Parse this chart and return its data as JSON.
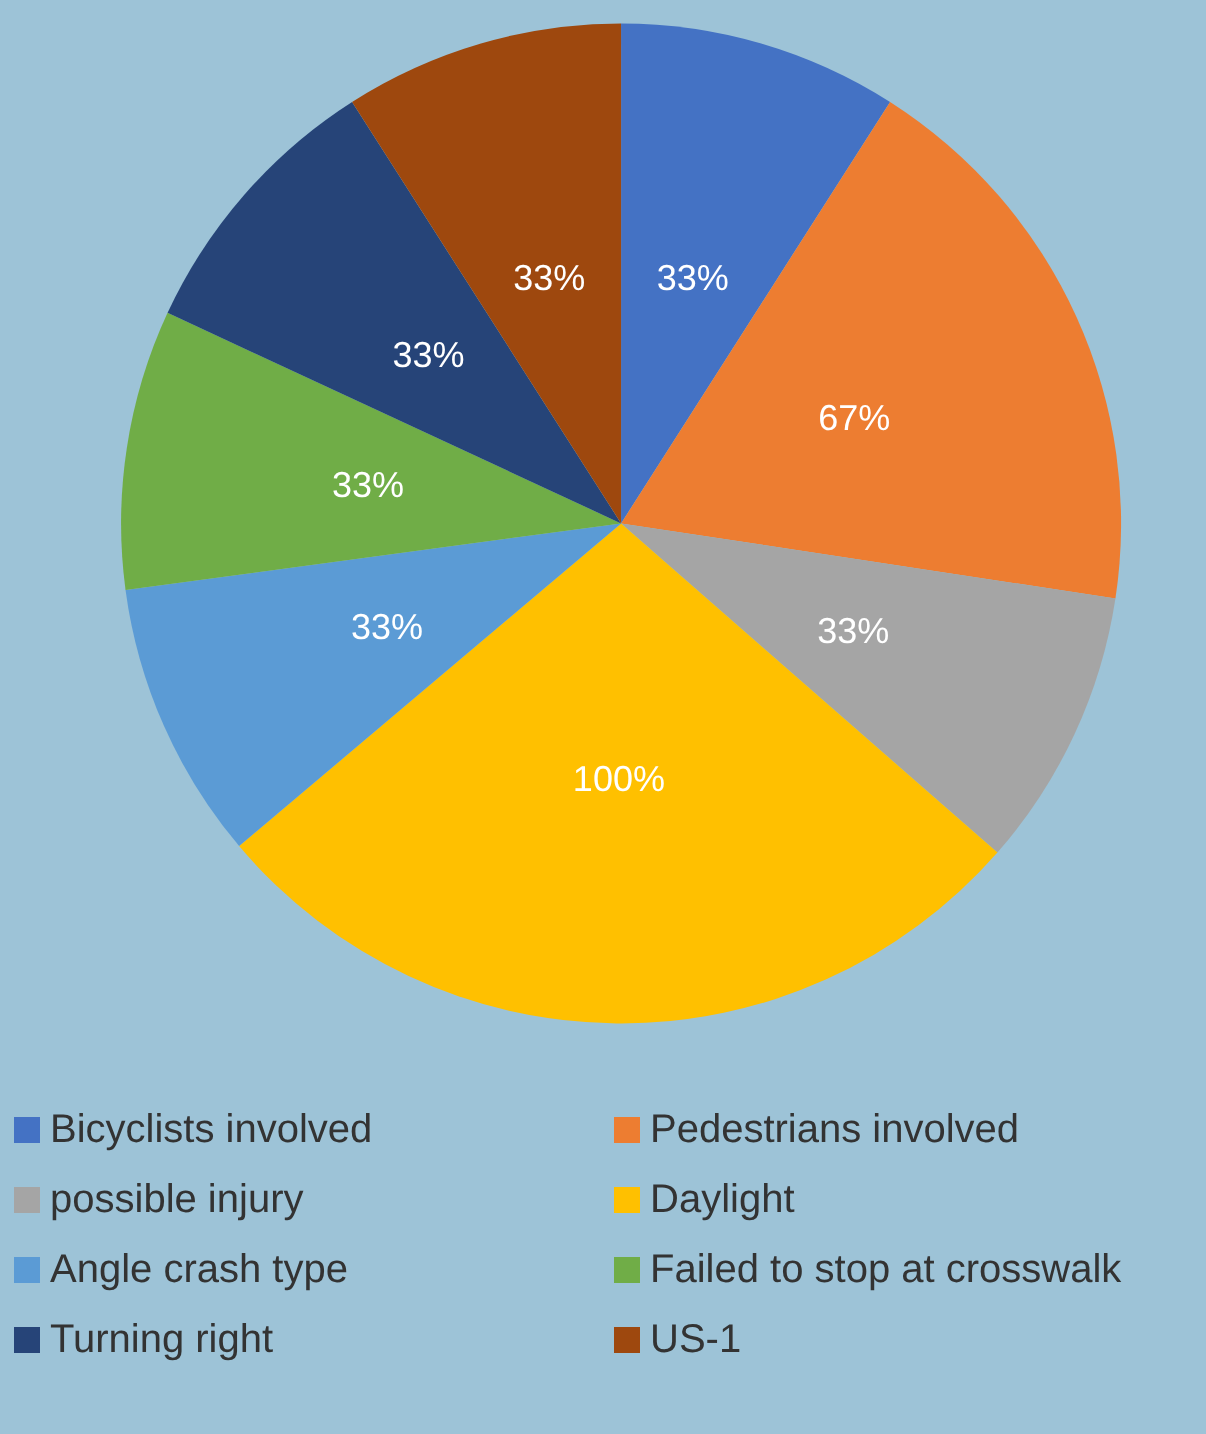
{
  "chart_data": {
    "type": "pie",
    "categories": [
      "Bicyclists involved",
      "Pedestrians involved",
      "possible injury",
      "Daylight",
      "Angle crash type",
      "Failed to stop at crosswalk",
      "Turning right",
      "US-1"
    ],
    "values": [
      33,
      67,
      33,
      100,
      33,
      33,
      33,
      33
    ],
    "value_labels": [
      "33%",
      "67%",
      "33%",
      "100%",
      "33%",
      "33%",
      "33%",
      "33%"
    ],
    "colors": [
      "#4472c4",
      "#ed7d31",
      "#a5a5a5",
      "#ffc000",
      "#5b9bd5",
      "#70ad47",
      "#264478",
      "#9e480e"
    ],
    "legend": "bottom"
  }
}
